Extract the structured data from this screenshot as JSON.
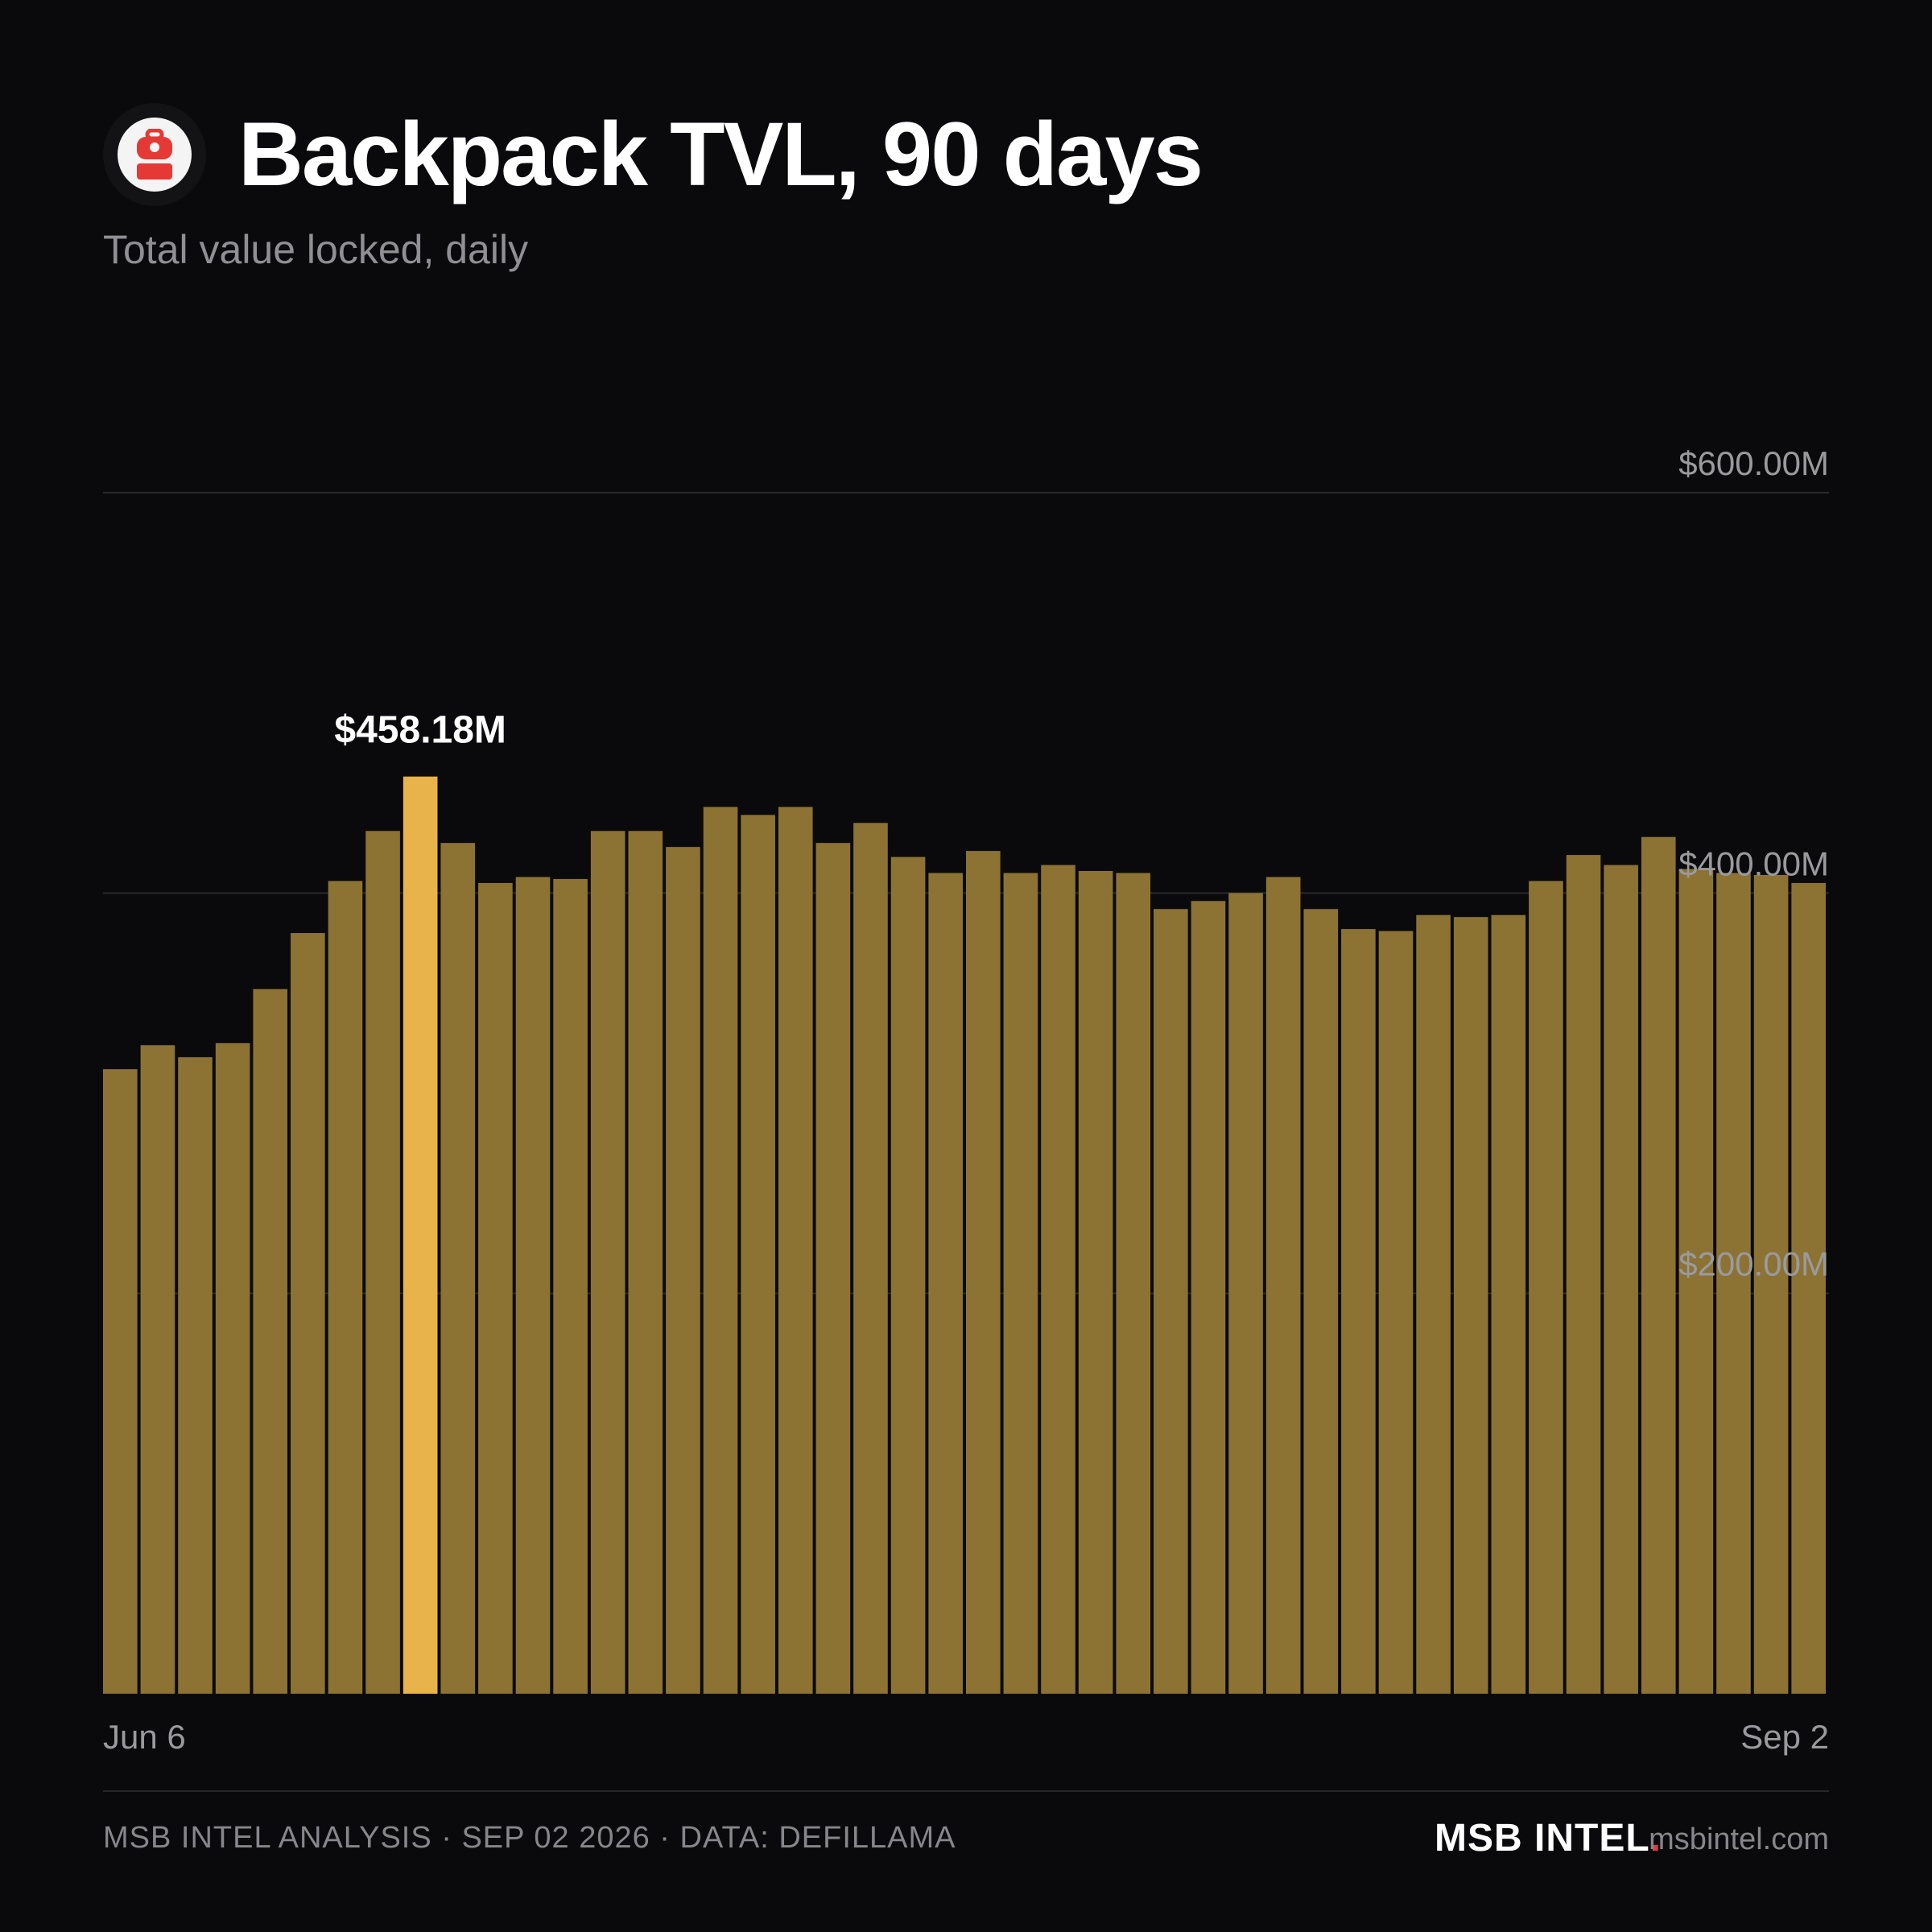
{
  "header": {
    "title": "Backpack TVL, 90 days",
    "subtitle": "Total value locked, daily",
    "logo_icon": "backpack-icon",
    "logo_color": "#e53935"
  },
  "footer": {
    "credit": "MSB INTEL ANALYSIS · SEP 02 2026 · DATA: DEFILLAMA",
    "brand": "MSB INTEL",
    "brand_dot": ".",
    "url": "msbintel.com"
  },
  "colors": {
    "background": "#0a0a0c",
    "bar": "#8c7334",
    "highlight_bar": "#e8b34a",
    "accent_dot": "#e63946"
  },
  "chart_data": {
    "type": "bar",
    "x_start_label": "Jun 6",
    "x_end_label": "Sep 2",
    "values": [
      312,
      324,
      318,
      325,
      352,
      380,
      406,
      431,
      458.18,
      425,
      405,
      408,
      407,
      431,
      431,
      423,
      443,
      439,
      443,
      425,
      435,
      418,
      410,
      421,
      410,
      414,
      411,
      410,
      392,
      396,
      400,
      408,
      392,
      382,
      381,
      389,
      388,
      389,
      406,
      419,
      414,
      428,
      412,
      410,
      409,
      405
    ],
    "highlight_index": 8,
    "highlight_label": "$458.18M",
    "y_ticks": [
      {
        "value": 200,
        "label": "$200.00M"
      },
      {
        "value": 400,
        "label": "$400.00M"
      },
      {
        "value": 600,
        "label": "$600.00M"
      }
    ],
    "ylim": [
      0,
      600
    ],
    "unit": "USD millions",
    "grid": true
  }
}
